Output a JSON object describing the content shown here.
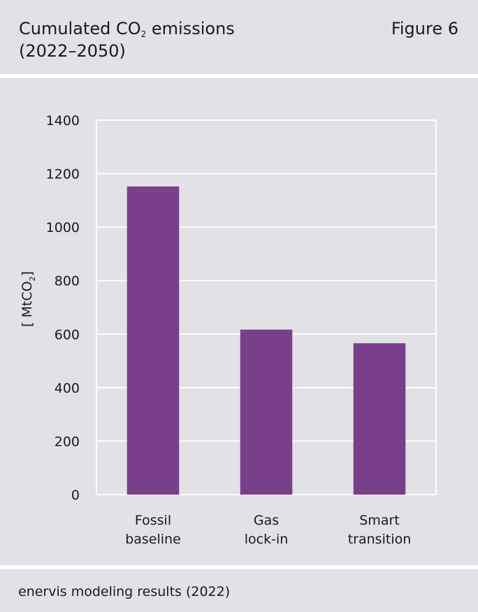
{
  "header": {
    "title_prefix": "Cumulated CO",
    "title_sub": "2",
    "title_suffix": " emissions",
    "title_line2": "(2022–2050)",
    "figure_label": "Figure 6"
  },
  "footer": {
    "source": "enervis modeling results (2022)"
  },
  "colors": {
    "bar": "#7a3f8a",
    "panel_background": "#e1e1e6",
    "gridline": "#ffffff"
  },
  "chart_data": {
    "type": "bar",
    "categories": [
      [
        "Fossil",
        "baseline"
      ],
      [
        "Gas",
        "lock-in"
      ],
      [
        "Smart",
        "transition"
      ]
    ],
    "values": [
      1152,
      617,
      566
    ],
    "ylabel_prefix": "[ MtCO",
    "ylabel_sub": "2",
    "ylabel_suffix": "]",
    "ylim": [
      0,
      1400
    ],
    "yticks": [
      0,
      200,
      400,
      600,
      800,
      1000,
      1200,
      1400
    ],
    "grid": true,
    "legend": "none"
  }
}
